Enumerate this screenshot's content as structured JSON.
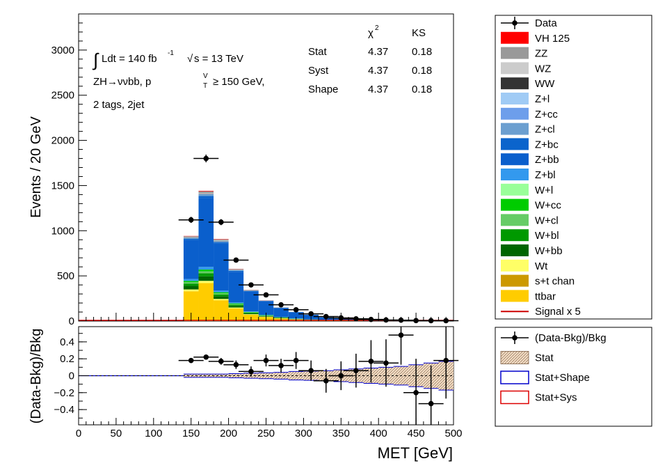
{
  "chart_data": [
    {
      "type": "bar",
      "panel": "main",
      "stacked": true,
      "xlabel": "MET [GeV]",
      "ylabel": "Events / 20 GeV",
      "xlim": [
        0,
        500
      ],
      "ylim": [
        0,
        3400
      ],
      "bin_edges": [
        0,
        20,
        40,
        60,
        80,
        100,
        120,
        140,
        160,
        180,
        200,
        220,
        240,
        260,
        280,
        300,
        320,
        340,
        360,
        380,
        400,
        420,
        440,
        460,
        480,
        500
      ],
      "x_ticks": [
        0,
        50,
        100,
        150,
        200,
        250,
        300,
        350,
        400,
        450,
        500
      ],
      "y_ticks": [
        0,
        500,
        1000,
        1500,
        2000,
        2500,
        3000
      ],
      "annotation": {
        "lumi": "Ldt = 140 fb",
        "lumi_exp": "-1",
        "sqrt_s": "s = 13 TeV",
        "process": "ZH→ννbb, p",
        "pt_sup": "V",
        "pt_sub": "T",
        "pt_cut": "≥ 150 GeV,",
        "selection": "2 tags, 2jet"
      },
      "stats_table": {
        "headers": [
          "χ",
          "KS"
        ],
        "chi_sup": "2",
        "rows": [
          {
            "label": "Stat",
            "chi2": "4.37",
            "ks": "0.18"
          },
          {
            "label": "Syst",
            "chi2": "4.37",
            "ks": "0.18"
          },
          {
            "label": "Shape",
            "chi2": "4.37",
            "ks": "0.18"
          }
        ]
      },
      "data_points": [
        {
          "x": 150,
          "y": 1120
        },
        {
          "x": 170,
          "y": 1800
        },
        {
          "x": 190,
          "y": 1095
        },
        {
          "x": 210,
          "y": 675
        },
        {
          "x": 230,
          "y": 400
        },
        {
          "x": 250,
          "y": 290
        },
        {
          "x": 270,
          "y": 180
        },
        {
          "x": 290,
          "y": 125
        },
        {
          "x": 310,
          "y": 80
        },
        {
          "x": 330,
          "y": 50
        },
        {
          "x": 350,
          "y": 35
        },
        {
          "x": 370,
          "y": 25
        },
        {
          "x": 390,
          "y": 18
        },
        {
          "x": 410,
          "y": 12
        },
        {
          "x": 430,
          "y": 10
        },
        {
          "x": 450,
          "y": 5
        },
        {
          "x": 470,
          "y": 4
        },
        {
          "x": 490,
          "y": 4
        }
      ],
      "stack_order": [
        "ttbar",
        "Wt",
        "W+bb",
        "W+bl",
        "W+cl",
        "W+cc",
        "Z+bl",
        "Z+bb",
        "Z+bc",
        "Z+cl",
        "WW",
        "WZ",
        "ZZ",
        "VH 125"
      ],
      "stack_start_bin": 7,
      "stack": {
        "ttbar": [
          330,
          420,
          230,
          140,
          70,
          45,
          28,
          18,
          12,
          8,
          5,
          3,
          2,
          2,
          1,
          1,
          1,
          1
        ],
        "Wt": [
          20,
          25,
          15,
          10,
          6,
          4,
          3,
          2,
          1,
          1,
          1,
          0,
          0,
          0,
          0,
          0,
          0,
          0
        ],
        "W+bb": [
          40,
          50,
          30,
          18,
          10,
          6,
          4,
          2,
          2,
          1,
          1,
          1,
          0,
          0,
          0,
          0,
          0,
          0
        ],
        "W+bl": [
          25,
          35,
          20,
          12,
          7,
          4,
          3,
          2,
          1,
          1,
          0,
          0,
          0,
          0,
          0,
          0,
          0,
          0
        ],
        "W+cl": [
          15,
          20,
          12,
          8,
          4,
          3,
          2,
          1,
          1,
          0,
          0,
          0,
          0,
          0,
          0,
          0,
          0,
          0
        ],
        "W+cc": [
          15,
          20,
          12,
          8,
          4,
          3,
          2,
          1,
          1,
          0,
          0,
          0,
          0,
          0,
          0,
          0,
          0,
          0
        ],
        "Z+bl": [
          20,
          30,
          18,
          10,
          6,
          4,
          2,
          2,
          1,
          1,
          0,
          0,
          0,
          0,
          0,
          0,
          0,
          0
        ],
        "Z+bb": [
          430,
          760,
          520,
          340,
          220,
          150,
          100,
          70,
          50,
          30,
          22,
          16,
          12,
          8,
          6,
          4,
          3,
          3
        ],
        "Z+bc": [
          15,
          25,
          16,
          10,
          6,
          4,
          3,
          2,
          1,
          1,
          1,
          0,
          0,
          0,
          0,
          0,
          0,
          0
        ],
        "Z+cl": [
          12,
          20,
          12,
          8,
          5,
          3,
          2,
          1,
          1,
          1,
          0,
          0,
          0,
          0,
          0,
          0,
          0,
          0
        ],
        "WW": [
          2,
          3,
          2,
          1,
          1,
          0,
          0,
          0,
          0,
          0,
          0,
          0,
          0,
          0,
          0,
          0,
          0,
          0
        ],
        "WZ": [
          5,
          8,
          5,
          3,
          2,
          1,
          1,
          0,
          0,
          0,
          0,
          0,
          0,
          0,
          0,
          0,
          0,
          0
        ],
        "ZZ": [
          10,
          20,
          12,
          8,
          4,
          2,
          2,
          1,
          1,
          0,
          0,
          0,
          0,
          0,
          0,
          0,
          0,
          0
        ],
        "VH 125": [
          3,
          6,
          4,
          2,
          1,
          1,
          0,
          0,
          0,
          0,
          0,
          0,
          0,
          0,
          0,
          0,
          0,
          0
        ]
      },
      "legend": [
        {
          "name": "Data",
          "kind": "marker",
          "color": "#000000"
        },
        {
          "name": "VH 125",
          "kind": "fill",
          "color": "#ff0000"
        },
        {
          "name": "ZZ",
          "kind": "fill",
          "color": "#999999"
        },
        {
          "name": "WZ",
          "kind": "fill",
          "color": "#cccccc"
        },
        {
          "name": "WW",
          "kind": "fill",
          "color": "#333333"
        },
        {
          "name": "Z+l",
          "kind": "fill",
          "color": "#a0cbf5"
        },
        {
          "name": "Z+cc",
          "kind": "fill",
          "color": "#6d9eeb"
        },
        {
          "name": "Z+cl",
          "kind": "fill",
          "color": "#6c9fd0"
        },
        {
          "name": "Z+bc",
          "kind": "fill",
          "color": "#0b64cc"
        },
        {
          "name": "Z+bb",
          "kind": "fill",
          "color": "#0a5fcc"
        },
        {
          "name": "Z+bl",
          "kind": "fill",
          "color": "#3399ee"
        },
        {
          "name": "W+l",
          "kind": "fill",
          "color": "#99ff99"
        },
        {
          "name": "W+cc",
          "kind": "fill",
          "color": "#00cc00"
        },
        {
          "name": "W+cl",
          "kind": "fill",
          "color": "#66cc66"
        },
        {
          "name": "W+bl",
          "kind": "fill",
          "color": "#009900"
        },
        {
          "name": "W+bb",
          "kind": "fill",
          "color": "#006600"
        },
        {
          "name": "Wt",
          "kind": "fill",
          "color": "#ffff66"
        },
        {
          "name": "s+t chan",
          "kind": "fill",
          "color": "#cc9900"
        },
        {
          "name": "ttbar",
          "kind": "fill",
          "color": "#ffcc00"
        },
        {
          "name": "Signal x 5",
          "kind": "line",
          "color": "#cc0000"
        }
      ]
    },
    {
      "type": "scatter",
      "panel": "ratio",
      "xlabel": "MET [GeV]",
      "ylabel": "(Data-Bkg)/Bkg",
      "xlim": [
        0,
        500
      ],
      "ylim": [
        -0.58,
        0.58
      ],
      "y_ticks": [
        -0.4,
        -0.2,
        0,
        0.2,
        0.4
      ],
      "y_tick_labels": [
        "−0.4",
        "−0.2",
        "0",
        "0.2",
        "0.4"
      ],
      "points": [
        {
          "x": 150,
          "y": 0.18,
          "err": 0.03
        },
        {
          "x": 170,
          "y": 0.22,
          "err": 0.03
        },
        {
          "x": 190,
          "y": 0.17,
          "err": 0.04
        },
        {
          "x": 210,
          "y": 0.13,
          "err": 0.05
        },
        {
          "x": 230,
          "y": 0.05,
          "err": 0.06
        },
        {
          "x": 250,
          "y": 0.18,
          "err": 0.07
        },
        {
          "x": 270,
          "y": 0.12,
          "err": 0.08
        },
        {
          "x": 290,
          "y": 0.18,
          "err": 0.1
        },
        {
          "x": 310,
          "y": 0.06,
          "err": 0.12
        },
        {
          "x": 330,
          "y": -0.06,
          "err": 0.14
        },
        {
          "x": 350,
          "y": 0.0,
          "err": 0.17
        },
        {
          "x": 370,
          "y": 0.06,
          "err": 0.2
        },
        {
          "x": 390,
          "y": 0.17,
          "err": 0.25
        },
        {
          "x": 410,
          "y": 0.15,
          "err": 0.28
        },
        {
          "x": 430,
          "y": 0.48,
          "err": 0.35
        },
        {
          "x": 450,
          "y": -0.2,
          "err": 0.4
        },
        {
          "x": 470,
          "y": -0.33,
          "err": 0.45
        },
        {
          "x": 490,
          "y": 0.18,
          "err": 0.45
        }
      ],
      "band_stat": [
        0.02,
        0.02,
        0.02,
        0.025,
        0.03,
        0.035,
        0.04,
        0.05,
        0.055,
        0.06,
        0.07,
        0.08,
        0.09,
        0.1,
        0.11,
        0.13,
        0.15,
        0.17
      ],
      "legend": [
        {
          "name": "(Data-Bkg)/Bkg",
          "kind": "marker",
          "color": "#000000"
        },
        {
          "name": "Stat",
          "kind": "hatch",
          "color": "#e8c9a8"
        },
        {
          "name": "Stat+Shape",
          "kind": "box",
          "color": "#0000cc"
        },
        {
          "name": "Stat+Sys",
          "kind": "box",
          "color": "#dd0000"
        }
      ]
    }
  ]
}
